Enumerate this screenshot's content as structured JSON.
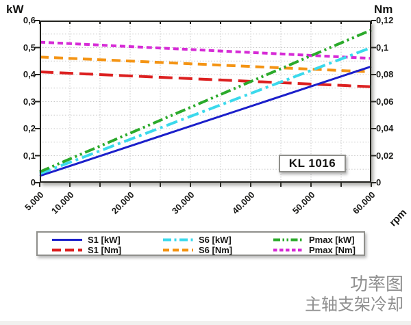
{
  "axis_titles": {
    "left": "kW",
    "right": "Nm",
    "x": "rpm"
  },
  "axes": {
    "left_ticks": [
      "0,6",
      "0,5",
      "0,4",
      "0,3",
      "0,2",
      "0,1",
      "0"
    ],
    "right_ticks": [
      "0,12",
      "0,1",
      "0,08",
      "0,06",
      "0,04",
      "0,02",
      "0"
    ],
    "x_ticks": [
      "5.000",
      "10.000",
      "20.000",
      "30.000",
      "40.000",
      "50.000",
      "60.000"
    ]
  },
  "annotation": {
    "model": "KL 1016"
  },
  "captions": {
    "title": "功率图",
    "subtitle": "主轴支架冷却"
  },
  "legend": {
    "items": [
      {
        "label": "S1 [kW]",
        "color": "#1b1fca",
        "style": "solid"
      },
      {
        "label": "S6 [kW]",
        "color": "#3bd9ec",
        "style": "dash-dot"
      },
      {
        "label": "Pmax [kW]",
        "color": "#2baa2b",
        "style": "dash-dot-dot"
      },
      {
        "label": "S1 [Nm]",
        "color": "#dc2020",
        "style": "long-dash"
      },
      {
        "label": "S6 [Nm]",
        "color": "#f49414",
        "style": "dash"
      },
      {
        "label": "Pmax [Nm]",
        "color": "#d62bd6",
        "style": "short-dash"
      }
    ]
  },
  "chart_data": {
    "type": "line",
    "title": "",
    "xlabel": "rpm",
    "x_range": [
      5000,
      60000
    ],
    "x_tick_values": [
      5000,
      10000,
      20000,
      30000,
      40000,
      50000,
      60000
    ],
    "x_minor_step": 5000,
    "left_axis": {
      "label": "kW",
      "range": [
        0,
        0.6
      ],
      "tick_step": 0.1,
      "minor_step": 0.05
    },
    "right_axis": {
      "label": "Nm",
      "range": [
        0,
        0.12
      ],
      "tick_step": 0.02
    },
    "grid": true,
    "legend_position": "bottom",
    "annotation": "KL 1016",
    "series": [
      {
        "name": "S1 [kW]",
        "axis": "left",
        "units": "kW",
        "color": "#1b1fca",
        "style": "solid",
        "x": [
          5000,
          60000
        ],
        "values": [
          0.025,
          0.43
        ]
      },
      {
        "name": "S6 [kW]",
        "axis": "left",
        "units": "kW",
        "color": "#3bd9ec",
        "style": "dash-dot",
        "x": [
          5000,
          60000
        ],
        "values": [
          0.033,
          0.5
        ]
      },
      {
        "name": "Pmax [kW]",
        "axis": "left",
        "units": "kW",
        "color": "#2baa2b",
        "style": "dash-dot-dot",
        "x": [
          5000,
          60000
        ],
        "values": [
          0.04,
          0.565
        ]
      },
      {
        "name": "S1 [Nm]",
        "axis": "right",
        "units": "Nm",
        "color": "#dc2020",
        "style": "long-dash",
        "x": [
          5000,
          60000
        ],
        "values": [
          0.082,
          0.071
        ]
      },
      {
        "name": "S6 [Nm]",
        "axis": "right",
        "units": "Nm",
        "color": "#f49414",
        "style": "dash",
        "x": [
          5000,
          60000
        ],
        "values": [
          0.093,
          0.082
        ]
      },
      {
        "name": "Pmax [Nm]",
        "axis": "right",
        "units": "Nm",
        "color": "#d62bd6",
        "style": "short-dash",
        "x": [
          5000,
          60000
        ],
        "values": [
          0.104,
          0.092
        ]
      }
    ]
  }
}
